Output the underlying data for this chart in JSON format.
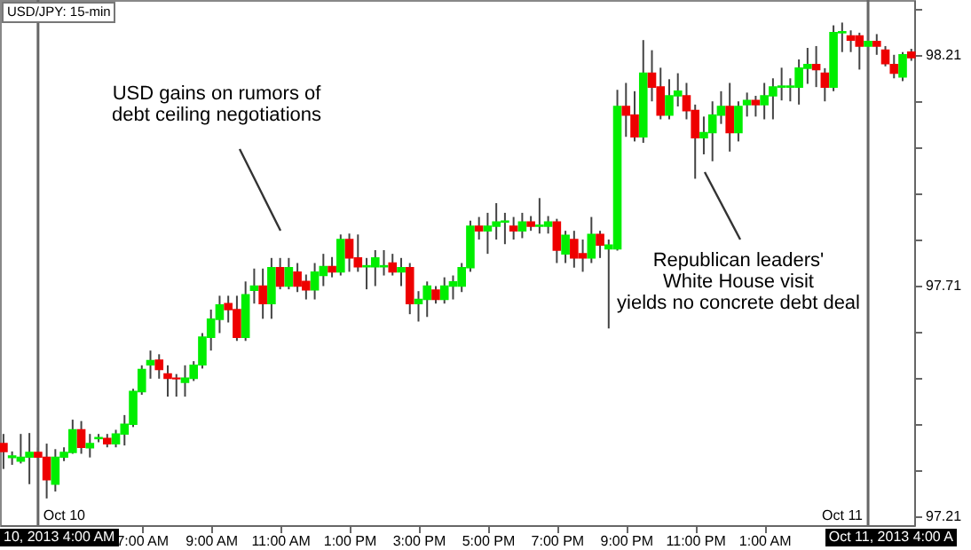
{
  "chart_data": {
    "type": "candlestick",
    "title": "USD/JPY: 15-min",
    "x": [
      "2013-10-10T03:00",
      "2013-10-10T03:15",
      "2013-10-10T03:30",
      "2013-10-10T03:45",
      "2013-10-10T04:00",
      "2013-10-10T04:15",
      "2013-10-10T04:30",
      "2013-10-10T04:45",
      "2013-10-10T05:00",
      "2013-10-10T05:15",
      "2013-10-10T05:30",
      "2013-10-10T05:45",
      "2013-10-10T06:00",
      "2013-10-10T06:15",
      "2013-10-10T06:30",
      "2013-10-10T06:45",
      "2013-10-10T07:00",
      "2013-10-10T07:15",
      "2013-10-10T07:30",
      "2013-10-10T07:45",
      "2013-10-10T08:00",
      "2013-10-10T08:15",
      "2013-10-10T08:30",
      "2013-10-10T08:45",
      "2013-10-10T09:00",
      "2013-10-10T09:15",
      "2013-10-10T09:30",
      "2013-10-10T09:45",
      "2013-10-10T10:00",
      "2013-10-10T10:15",
      "2013-10-10T10:30",
      "2013-10-10T10:45",
      "2013-10-10T11:00",
      "2013-10-10T11:15",
      "2013-10-10T11:30",
      "2013-10-10T11:45",
      "2013-10-10T12:00",
      "2013-10-10T12:15",
      "2013-10-10T12:30",
      "2013-10-10T12:45",
      "2013-10-10T13:00",
      "2013-10-10T13:15",
      "2013-10-10T13:30",
      "2013-10-10T13:45",
      "2013-10-10T14:00",
      "2013-10-10T14:15",
      "2013-10-10T14:30",
      "2013-10-10T14:45",
      "2013-10-10T15:00",
      "2013-10-10T15:15",
      "2013-10-10T15:30",
      "2013-10-10T15:45",
      "2013-10-10T16:00",
      "2013-10-10T16:15",
      "2013-10-10T16:30",
      "2013-10-10T16:45",
      "2013-10-10T17:00",
      "2013-10-10T17:15",
      "2013-10-10T17:30",
      "2013-10-10T17:45",
      "2013-10-10T18:00",
      "2013-10-10T18:15",
      "2013-10-10T18:30",
      "2013-10-10T18:45",
      "2013-10-10T19:00",
      "2013-10-10T19:15",
      "2013-10-10T19:30",
      "2013-10-10T19:45",
      "2013-10-10T20:00",
      "2013-10-10T20:15",
      "2013-10-10T20:30",
      "2013-10-10T20:45",
      "2013-10-10T21:00",
      "2013-10-10T21:15",
      "2013-10-10T21:30",
      "2013-10-10T21:45",
      "2013-10-10T22:00",
      "2013-10-10T22:15",
      "2013-10-10T22:30",
      "2013-10-10T22:45",
      "2013-10-10T23:00",
      "2013-10-10T23:15",
      "2013-10-10T23:30",
      "2013-10-10T23:45",
      "2013-10-11T00:00",
      "2013-10-11T00:15",
      "2013-10-11T00:30",
      "2013-10-11T00:45",
      "2013-10-11T01:00",
      "2013-10-11T01:15",
      "2013-10-11T01:30",
      "2013-10-11T01:45",
      "2013-10-11T02:00",
      "2013-10-11T02:15",
      "2013-10-11T02:30",
      "2013-10-11T02:45",
      "2013-10-11T03:00",
      "2013-10-11T03:15",
      "2013-10-11T03:30",
      "2013-10-11T03:45",
      "2013-10-11T04:00",
      "2013-10-11T04:15",
      "2013-10-11T04:30",
      "2013-10-11T04:45",
      "2013-10-11T05:00",
      "2013-10-11T05:15"
    ],
    "ohlc": [
      [
        97.367,
        97.388,
        97.312,
        97.35
      ],
      [
        97.337,
        97.35,
        97.321,
        97.34
      ],
      [
        97.329,
        97.388,
        97.324,
        97.337
      ],
      [
        97.338,
        97.39,
        97.279,
        97.348
      ],
      [
        97.348,
        97.359,
        97.333,
        97.338
      ],
      [
        97.337,
        97.367,
        97.248,
        97.289
      ],
      [
        97.279,
        97.355,
        97.263,
        97.337
      ],
      [
        97.338,
        97.359,
        97.329,
        97.348
      ],
      [
        97.348,
        97.419,
        97.345,
        97.397
      ],
      [
        97.397,
        97.416,
        97.345,
        97.359
      ],
      [
        97.358,
        97.388,
        97.337,
        97.367
      ],
      [
        97.378,
        97.388,
        97.37,
        97.38
      ],
      [
        97.378,
        97.388,
        97.359,
        97.367
      ],
      [
        97.367,
        97.397,
        97.359,
        97.388
      ],
      [
        97.388,
        97.429,
        97.363,
        97.409
      ],
      [
        97.409,
        97.486,
        97.403,
        97.48
      ],
      [
        97.48,
        97.537,
        97.473,
        97.528
      ],
      [
        97.538,
        97.569,
        97.508,
        97.547
      ],
      [
        97.548,
        97.561,
        97.508,
        97.528
      ],
      [
        97.518,
        97.537,
        97.469,
        97.509
      ],
      [
        97.509,
        97.518,
        97.469,
        97.508
      ],
      [
        97.5,
        97.537,
        97.469,
        97.509
      ],
      [
        97.509,
        97.546,
        97.503,
        97.537
      ],
      [
        97.538,
        97.607,
        97.53,
        97.598
      ],
      [
        97.598,
        97.658,
        97.569,
        97.637
      ],
      [
        97.637,
        97.688,
        97.607,
        97.668
      ],
      [
        97.671,
        97.688,
        97.63,
        97.658
      ],
      [
        97.658,
        97.688,
        97.59,
        97.598
      ],
      [
        97.598,
        97.719,
        97.59,
        97.69
      ],
      [
        97.7,
        97.747,
        97.671,
        97.709
      ],
      [
        97.709,
        97.747,
        97.638,
        97.671
      ],
      [
        97.671,
        97.77,
        97.638,
        97.749
      ],
      [
        97.749,
        97.77,
        97.702,
        97.709
      ],
      [
        97.709,
        97.77,
        97.702,
        97.749
      ],
      [
        97.739,
        97.759,
        97.696,
        97.709
      ],
      [
        97.719,
        97.734,
        97.68,
        97.701
      ],
      [
        97.701,
        97.759,
        97.68,
        97.739
      ],
      [
        97.732,
        97.779,
        97.709,
        97.751
      ],
      [
        97.751,
        97.772,
        97.728,
        97.74
      ],
      [
        97.74,
        97.821,
        97.732,
        97.81
      ],
      [
        97.81,
        97.823,
        97.74,
        97.77
      ],
      [
        97.77,
        97.821,
        97.74,
        97.751
      ],
      [
        97.751,
        97.77,
        97.702,
        97.753
      ],
      [
        97.751,
        97.787,
        97.709,
        97.77
      ],
      [
        97.751,
        97.787,
        97.732,
        97.753
      ],
      [
        97.759,
        97.779,
        97.732,
        97.74
      ],
      [
        97.74,
        97.77,
        97.709,
        97.749
      ],
      [
        97.749,
        97.759,
        97.648,
        97.671
      ],
      [
        97.671,
        97.698,
        97.632,
        97.68
      ],
      [
        97.68,
        97.719,
        97.642,
        97.709
      ],
      [
        97.7,
        97.709,
        97.671,
        97.68
      ],
      [
        97.68,
        97.728,
        97.671,
        97.709
      ],
      [
        97.709,
        97.732,
        97.68,
        97.718
      ],
      [
        97.709,
        97.759,
        97.696,
        97.749
      ],
      [
        97.749,
        97.851,
        97.74,
        97.839
      ],
      [
        97.839,
        97.859,
        97.81,
        97.829
      ],
      [
        97.829,
        97.868,
        97.779,
        97.839
      ],
      [
        97.839,
        97.889,
        97.81,
        97.848
      ],
      [
        97.848,
        97.868,
        97.8,
        97.85
      ],
      [
        97.839,
        97.859,
        97.81,
        97.829
      ],
      [
        97.829,
        97.868,
        97.813,
        97.848
      ],
      [
        97.848,
        97.861,
        97.829,
        97.839
      ],
      [
        97.839,
        97.9,
        97.823,
        97.841
      ],
      [
        97.839,
        97.861,
        97.823,
        97.848
      ],
      [
        97.848,
        97.855,
        97.759,
        97.787
      ],
      [
        97.779,
        97.829,
        97.759,
        97.819
      ],
      [
        97.81,
        97.829,
        97.749,
        97.77
      ],
      [
        97.779,
        97.81,
        97.74,
        97.77
      ],
      [
        97.77,
        97.859,
        97.759,
        97.821
      ],
      [
        97.821,
        97.829,
        97.77,
        97.798
      ],
      [
        97.79,
        97.81,
        97.617,
        97.798
      ],
      [
        97.79,
        98.135,
        97.786,
        98.099
      ],
      [
        98.099,
        98.15,
        98.033,
        98.08
      ],
      [
        98.08,
        98.132,
        98.023,
        98.033
      ],
      [
        98.033,
        98.243,
        98.02,
        98.171
      ],
      [
        98.171,
        98.221,
        98.11,
        98.141
      ],
      [
        98.141,
        98.183,
        98.071,
        98.08
      ],
      [
        98.08,
        98.158,
        98.071,
        98.122
      ],
      [
        98.122,
        98.171,
        98.099,
        98.132
      ],
      [
        98.122,
        98.15,
        98.071,
        98.09
      ],
      [
        98.09,
        98.103,
        97.942,
        98.031
      ],
      [
        98.031,
        98.077,
        97.995,
        98.042
      ],
      [
        98.042,
        98.11,
        97.98,
        98.08
      ],
      [
        98.08,
        98.132,
        98.061,
        98.099
      ],
      [
        98.099,
        98.15,
        98.001,
        98.042
      ],
      [
        98.042,
        98.11,
        98.023,
        98.099
      ],
      [
        98.103,
        98.129,
        98.077,
        98.112
      ],
      [
        98.112,
        98.122,
        98.077,
        98.103
      ],
      [
        98.103,
        98.15,
        98.071,
        98.122
      ],
      [
        98.122,
        98.16,
        98.071,
        98.141
      ],
      [
        98.141,
        98.183,
        98.112,
        98.143
      ],
      [
        98.141,
        98.16,
        98.11,
        98.143
      ],
      [
        98.141,
        98.201,
        98.103,
        98.182
      ],
      [
        98.182,
        98.226,
        98.148,
        98.19
      ],
      [
        98.19,
        98.23,
        98.141,
        98.179
      ],
      [
        98.171,
        98.182,
        98.11,
        98.141
      ],
      [
        98.141,
        98.275,
        98.132,
        98.259
      ],
      [
        98.259,
        98.281,
        98.217,
        98.261
      ],
      [
        98.252,
        98.264,
        98.217,
        98.243
      ],
      [
        98.252,
        98.259,
        98.179,
        98.23
      ],
      [
        98.23,
        98.287,
        98.217,
        98.24
      ],
      [
        98.24,
        98.256,
        98.211,
        98.23
      ],
      [
        98.221,
        98.23,
        98.186,
        98.192
      ],
      [
        98.19,
        98.211,
        98.16,
        98.171
      ],
      [
        98.163,
        98.217,
        98.154,
        98.211
      ],
      [
        98.217,
        98.224,
        98.198,
        98.205
      ]
    ],
    "colors": [
      "#ee0000",
      "#00ee00",
      "#00ee00",
      "#00ee00",
      "#ee0000",
      "#ee0000",
      "#00ee00",
      "#00ee00",
      "#00ee00",
      "#ee0000",
      "#00ee00",
      "#00ee00",
      "#ee0000",
      "#00ee00",
      "#00ee00",
      "#00ee00",
      "#00ee00",
      "#00ee00",
      "#ee0000",
      "#ee0000",
      "#ee0000",
      "#00ee00",
      "#00ee00",
      "#00ee00",
      "#00ee00",
      "#00ee00",
      "#ee0000",
      "#ee0000",
      "#00ee00",
      "#00ee00",
      "#ee0000",
      "#00ee00",
      "#ee0000",
      "#00ee00",
      "#ee0000",
      "#ee0000",
      "#00ee00",
      "#00ee00",
      "#ee0000",
      "#00ee00",
      "#ee0000",
      "#ee0000",
      "#00ee00",
      "#00ee00",
      "#00ee00",
      "#ee0000",
      "#00ee00",
      "#ee0000",
      "#00ee00",
      "#00ee00",
      "#ee0000",
      "#00ee00",
      "#00ee00",
      "#00ee00",
      "#00ee00",
      "#ee0000",
      "#00ee00",
      "#00ee00",
      "#00ee00",
      "#ee0000",
      "#00ee00",
      "#ee0000",
      "#00ee00",
      "#00ee00",
      "#ee0000",
      "#00ee00",
      "#ee0000",
      "#ee0000",
      "#00ee00",
      "#ee0000",
      "#00ee00",
      "#00ee00",
      "#ee0000",
      "#ee0000",
      "#00ee00",
      "#ee0000",
      "#ee0000",
      "#00ee00",
      "#00ee00",
      "#ee0000",
      "#ee0000",
      "#00ee00",
      "#00ee00",
      "#00ee00",
      "#ee0000",
      "#00ee00",
      "#00ee00",
      "#ee0000",
      "#00ee00",
      "#00ee00",
      "#00ee00",
      "#00ee00",
      "#00ee00",
      "#00ee00",
      "#ee0000",
      "#ee0000",
      "#00ee00",
      "#00ee00",
      "#ee0000",
      "#ee0000",
      "#00ee00",
      "#ee0000",
      "#ee0000",
      "#ee0000",
      "#00ee00",
      "#ee0000"
    ],
    "xlim": [
      "2013-10-10T02:54",
      "2013-10-11T05:20"
    ],
    "xticks": [
      {
        "value": "2013-10-10T07:00",
        "label": "7:00 AM"
      },
      {
        "value": "2013-10-10T09:00",
        "label": "9:00 AM"
      },
      {
        "value": "2013-10-10T11:00",
        "label": "11:00 AM"
      },
      {
        "value": "2013-10-10T13:00",
        "label": "1:00 PM"
      },
      {
        "value": "2013-10-10T15:00",
        "label": "3:00 PM"
      },
      {
        "value": "2013-10-10T17:00",
        "label": "5:00 PM"
      },
      {
        "value": "2013-10-10T19:00",
        "label": "7:00 PM"
      },
      {
        "value": "2013-10-10T21:00",
        "label": "9:00 PM"
      },
      {
        "value": "2013-10-10T23:00",
        "label": "11:00 PM"
      },
      {
        "value": "2013-10-11T01:00",
        "label": "1:00 AM"
      }
    ],
    "ylim": [
      97.19,
      98.33
    ],
    "yticks": [
      97.21,
      {
        "value": 97.31,
        "label": null
      },
      {
        "value": 97.41,
        "label": null
      },
      {
        "value": 97.51,
        "label": null
      },
      {
        "value": 97.61,
        "label": null
      },
      97.71,
      {
        "value": 97.81,
        "label": null
      },
      {
        "value": 97.91,
        "label": null
      },
      {
        "value": 98.01,
        "label": null
      },
      {
        "value": 98.11,
        "label": null
      },
      98.21,
      {
        "value": 98.31,
        "label": null
      }
    ],
    "ref_lines": [
      {
        "axis": "x",
        "value": "2013-10-10T04:00",
        "label": "Oct 10",
        "color": "#666666"
      },
      {
        "axis": "x",
        "value": "2013-10-11T04:00",
        "label": "Oct 11",
        "color": "#666666"
      }
    ],
    "annotations": [
      "USD gains on rumors of\ndebt ceiling negotiations",
      "Republican leaders'\nWhite House visit\nyields no concrete debt deal",
      "10, 2013 4:00 AM",
      "Oct 11, 2013 4:00 A"
    ]
  }
}
